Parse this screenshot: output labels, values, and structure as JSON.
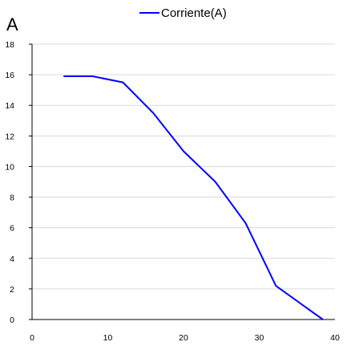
{
  "chart_data": {
    "type": "line",
    "title": "",
    "xlabel": "",
    "ylabel": "A",
    "xlim": [
      0,
      40
    ],
    "ylim": [
      0,
      18
    ],
    "xticks": [
      0,
      10,
      20,
      30,
      40
    ],
    "yticks": [
      0,
      2,
      4,
      6,
      8,
      10,
      12,
      14,
      16,
      18
    ],
    "grid": "horizontal",
    "legend_position": "top",
    "series": [
      {
        "name": "Corriente(A)",
        "color": "#0000ff",
        "x": [
          4.2,
          8,
          12,
          16,
          20,
          24.2,
          28.2,
          32.2,
          38.4
        ],
        "y": [
          15.9,
          15.9,
          15.5,
          13.5,
          11,
          9,
          6.3,
          2.2,
          0
        ]
      }
    ]
  }
}
